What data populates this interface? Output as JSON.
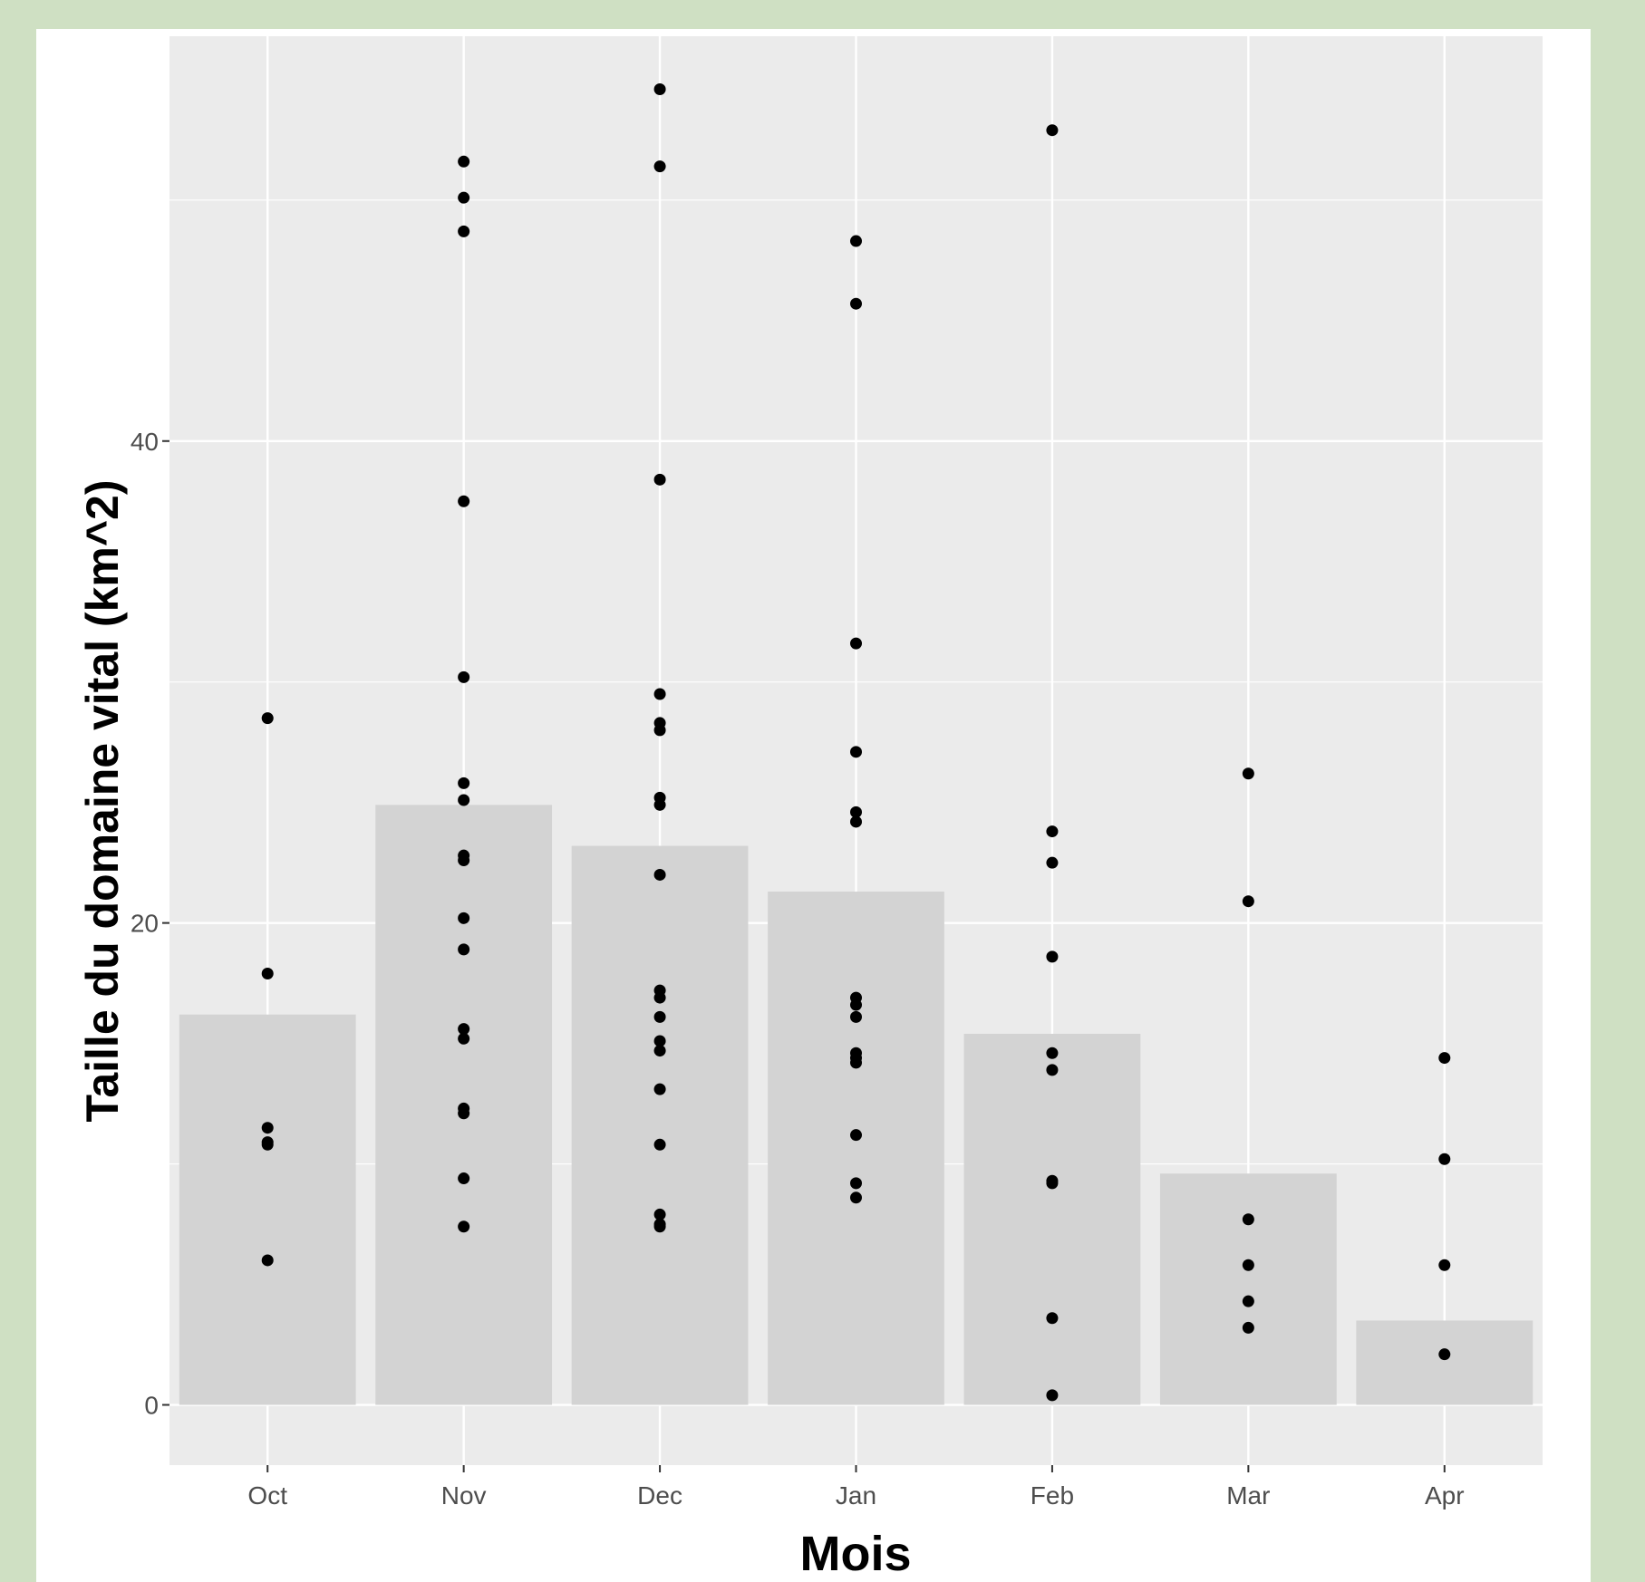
{
  "chart_data": {
    "type": "bar",
    "xlabel": "Mois",
    "ylabel": "Taille du domaine vital (km^2)",
    "categories": [
      "Oct",
      "Nov",
      "Dec",
      "Jan",
      "Feb",
      "Mar",
      "Apr"
    ],
    "values": [
      16.2,
      24.9,
      23.2,
      21.3,
      15.4,
      9.6,
      3.5
    ],
    "points": [
      [
        28.5,
        17.9,
        11.5,
        10.9,
        10.8,
        6.0
      ],
      [
        51.6,
        50.1,
        48.7,
        37.5,
        30.2,
        25.8,
        25.1,
        22.8,
        22.6,
        20.2,
        18.9,
        15.6,
        15.2,
        12.3,
        12.1,
        9.4,
        7.4
      ],
      [
        54.6,
        51.4,
        38.4,
        29.5,
        28.3,
        28.0,
        25.2,
        24.9,
        22.0,
        17.2,
        16.9,
        16.1,
        15.1,
        14.7,
        13.1,
        10.8,
        7.9,
        7.5,
        7.4
      ],
      [
        48.3,
        45.7,
        31.6,
        27.1,
        24.6,
        24.2,
        16.9,
        16.6,
        16.1,
        14.6,
        14.4,
        14.2,
        11.2,
        9.2,
        8.6
      ],
      [
        52.9,
        23.8,
        22.5,
        18.6,
        14.6,
        13.9,
        9.3,
        9.2,
        3.6,
        0.4
      ],
      [
        26.2,
        20.9,
        7.7,
        5.8,
        4.3,
        3.2
      ],
      [
        14.4,
        10.2,
        5.8,
        2.1
      ]
    ],
    "yticks": [
      0,
      20,
      40
    ],
    "ylim": [
      -2.5,
      56.8
    ],
    "grid": true,
    "colors": {
      "panel": "#ebebeb",
      "grid": "#ffffff",
      "bar": "#d3d3d3",
      "point": "#000000"
    }
  }
}
